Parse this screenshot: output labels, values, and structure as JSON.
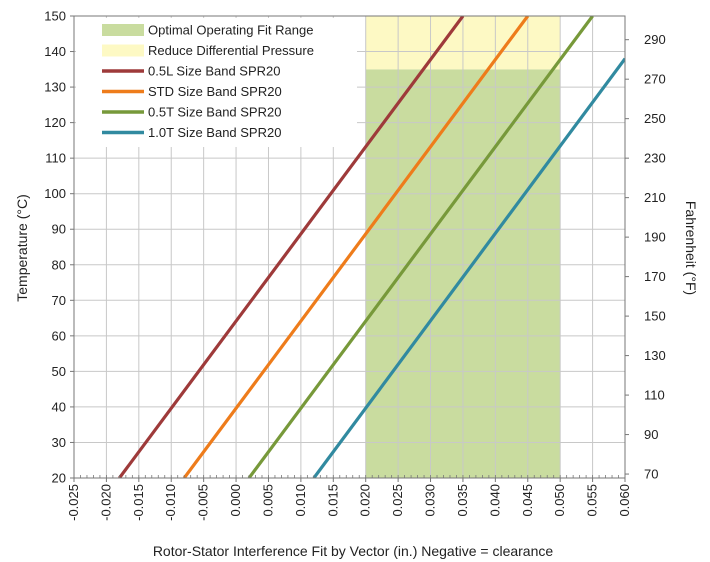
{
  "chart_data": {
    "type": "line",
    "xlabel": "Rotor-Stator Interference Fit by Vector (in.) Negative = clearance",
    "ylabel": "Temperature (°C)",
    "y2label": "Fahrenheit (°F)",
    "xlim": [
      -0.025,
      0.06
    ],
    "ylim": [
      20,
      150
    ],
    "y2lim": [
      68,
      302
    ],
    "x_ticks": [
      "-0.025",
      "-0.020",
      "-0.015",
      "-0.010",
      "-0.005",
      "0.000",
      "0.005",
      "0.010",
      "0.015",
      "0.020",
      "0.025",
      "0.030",
      "0.035",
      "0.040",
      "0.045",
      "0.050",
      "0.055",
      "0.060"
    ],
    "y_ticks": [
      "20",
      "30",
      "40",
      "50",
      "60",
      "70",
      "80",
      "90",
      "100",
      "110",
      "120",
      "130",
      "140",
      "150"
    ],
    "y2_ticks": [
      "70",
      "90",
      "110",
      "130",
      "150",
      "170",
      "190",
      "210",
      "230",
      "250",
      "270",
      "290"
    ],
    "grid": true,
    "legend_position": "top-left",
    "regions": [
      {
        "name": "Optimal Operating Fit Range",
        "x": [
          0.02,
          0.05
        ],
        "y": [
          20,
          135
        ],
        "color": "#c9dc9f"
      },
      {
        "name": "Reduce Differential Pressure",
        "x": [
          0.02,
          0.05
        ],
        "y": [
          135,
          150
        ],
        "color": "#fdf9c4"
      }
    ],
    "series": [
      {
        "name": "0.5L Size Band SPR20",
        "color": "#9e3a3a",
        "x": [
          -0.018,
          0.035
        ],
        "y": [
          20,
          150
        ]
      },
      {
        "name": "STD Size Band SPR20",
        "color": "#ee7c1b",
        "x": [
          -0.008,
          0.045
        ],
        "y": [
          20,
          150
        ]
      },
      {
        "name": "0.5T Size Band SPR20",
        "color": "#77993a",
        "x": [
          0.002,
          0.055
        ],
        "y": [
          20,
          150
        ]
      },
      {
        "name": "1.0T Size Band SPR20",
        "color": "#318aa0",
        "x": [
          0.012,
          0.06
        ],
        "y": [
          20,
          138
        ]
      }
    ]
  }
}
